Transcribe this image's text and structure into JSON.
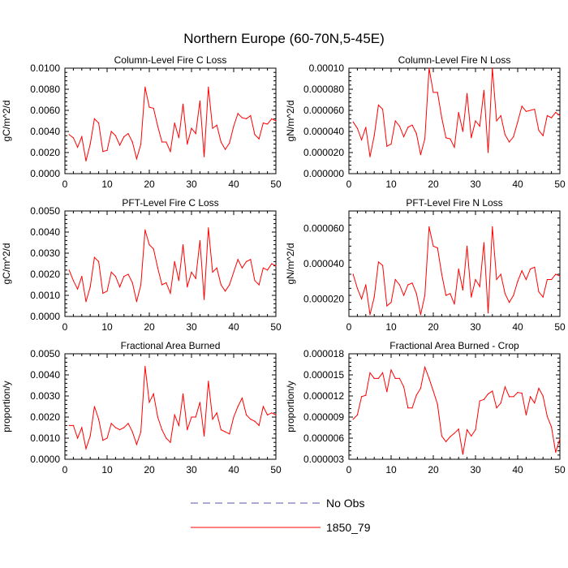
{
  "figure": {
    "title": "Northern Europe (60-70N,5-45E)",
    "legend": [
      {
        "label": "No Obs",
        "color": "#5555aa",
        "dash": true
      },
      {
        "label": "1850_79",
        "color": "#ff0000",
        "dash": false
      }
    ]
  },
  "chart_data": [
    {
      "type": "line",
      "title": "Column-Level Fire C Loss",
      "ylabel": "gC/m^2/d",
      "xlim": [
        0,
        50
      ],
      "ylim": [
        0,
        0.01
      ],
      "xticks": [
        "0",
        "10",
        "20",
        "30",
        "40",
        "50"
      ],
      "yticks": [
        "0.0000",
        "0.0020",
        "0.0040",
        "0.0060",
        "0.0080",
        "0.0100"
      ],
      "x": [
        1,
        2,
        3,
        4,
        5,
        6,
        7,
        8,
        9,
        10,
        11,
        12,
        13,
        14,
        15,
        16,
        17,
        18,
        19,
        20,
        21,
        22,
        23,
        24,
        25,
        26,
        27,
        28,
        29,
        30,
        31,
        32,
        33,
        34,
        35,
        36,
        37,
        38,
        39,
        40,
        41,
        42,
        43,
        44,
        45,
        46,
        47,
        48,
        49,
        50
      ],
      "series": [
        {
          "name": "1850_79",
          "color": "#ff0000",
          "values": [
            0.0037,
            0.0034,
            0.0025,
            0.0035,
            0.0012,
            0.0028,
            0.0052,
            0.0048,
            0.0021,
            0.0022,
            0.004,
            0.0036,
            0.0027,
            0.0035,
            0.0038,
            0.003,
            0.0014,
            0.0028,
            0.0082,
            0.0063,
            0.0062,
            0.0045,
            0.003,
            0.003,
            0.0021,
            0.0048,
            0.0034,
            0.0066,
            0.0028,
            0.0043,
            0.0038,
            0.0069,
            0.0016,
            0.0082,
            0.0043,
            0.0046,
            0.003,
            0.0023,
            0.0029,
            0.0045,
            0.0057,
            0.0053,
            0.0052,
            0.0055,
            0.0037,
            0.0033,
            0.0048,
            0.0047,
            0.0052,
            0.005
          ]
        }
      ]
    },
    {
      "type": "line",
      "title": "Column-Level Fire N Loss",
      "ylabel": "gN/m^2/d",
      "xlim": [
        0,
        50
      ],
      "ylim": [
        0,
        0.0001
      ],
      "xticks": [
        "0",
        "10",
        "20",
        "30",
        "40",
        "50"
      ],
      "yticks": [
        "0.000000",
        "0.000020",
        "0.000040",
        "0.000060",
        "0.000080",
        "0.00010"
      ],
      "x": [
        1,
        2,
        3,
        4,
        5,
        6,
        7,
        8,
        9,
        10,
        11,
        12,
        13,
        14,
        15,
        16,
        17,
        18,
        19,
        20,
        21,
        22,
        23,
        24,
        25,
        26,
        27,
        28,
        29,
        30,
        31,
        32,
        33,
        34,
        35,
        36,
        37,
        38,
        39,
        40,
        41,
        42,
        43,
        44,
        45,
        46,
        47,
        48,
        49,
        50
      ],
      "series": [
        {
          "name": "1850_79",
          "color": "#ff0000",
          "values": [
            4.9e-05,
            4.3e-05,
            3.2e-05,
            4.4e-05,
            1.6e-05,
            3.6e-05,
            6.5e-05,
            6.1e-05,
            2.6e-05,
            2.8e-05,
            5e-05,
            4.5e-05,
            3.5e-05,
            4.4e-05,
            4.6e-05,
            3.8e-05,
            1.8e-05,
            3.3e-05,
            0.0001,
            7.7e-05,
            7.7e-05,
            5.3e-05,
            3.4e-05,
            3.3e-05,
            2.5e-05,
            5.8e-05,
            4e-05,
            7.6e-05,
            3.4e-05,
            5e-05,
            4.5e-05,
            7.9e-05,
            2e-05,
            0.0001,
            5e-05,
            5.5e-05,
            3.7e-05,
            3e-05,
            3.5e-05,
            4.9e-05,
            6.4e-05,
            5.9e-05,
            6e-05,
            6.1e-05,
            4.1e-05,
            3.6e-05,
            5.5e-05,
            5.3e-05,
            5.8e-05,
            5.5e-05
          ]
        }
      ]
    },
    {
      "type": "line",
      "title": "PFT-Level Fire C Loss",
      "ylabel": "gC/m^2/d",
      "xlim": [
        0,
        50
      ],
      "ylim": [
        0,
        0.005
      ],
      "xticks": [
        "0",
        "10",
        "20",
        "30",
        "40",
        "50"
      ],
      "yticks": [
        "0.0000",
        "0.0010",
        "0.0020",
        "0.0030",
        "0.0040",
        "0.0050"
      ],
      "x": [
        1,
        2,
        3,
        4,
        5,
        6,
        7,
        8,
        9,
        10,
        11,
        12,
        13,
        14,
        15,
        16,
        17,
        18,
        19,
        20,
        21,
        22,
        23,
        24,
        25,
        26,
        27,
        28,
        29,
        30,
        31,
        32,
        33,
        34,
        35,
        36,
        37,
        38,
        39,
        40,
        41,
        42,
        43,
        44,
        45,
        46,
        47,
        48,
        49,
        50
      ],
      "series": [
        {
          "name": "1850_79",
          "color": "#ff0000",
          "values": [
            0.0022,
            0.0017,
            0.0013,
            0.0019,
            0.0007,
            0.0014,
            0.0028,
            0.0026,
            0.0011,
            0.0012,
            0.0021,
            0.0019,
            0.0014,
            0.0019,
            0.002,
            0.0016,
            0.0007,
            0.0015,
            0.0041,
            0.0034,
            0.0032,
            0.0023,
            0.0015,
            0.0016,
            0.0011,
            0.0026,
            0.0017,
            0.0034,
            0.0014,
            0.0021,
            0.0018,
            0.0036,
            0.0008,
            0.0042,
            0.0021,
            0.0023,
            0.0015,
            0.0012,
            0.0015,
            0.0021,
            0.0027,
            0.0023,
            0.0026,
            0.0027,
            0.0017,
            0.0015,
            0.0023,
            0.0022,
            0.0025,
            0.0024
          ]
        }
      ]
    },
    {
      "type": "line",
      "title": "PFT-Level Fire N Loss",
      "ylabel": "gN/m^2/d",
      "xlim": [
        0,
        50
      ],
      "ylim": [
        1e-05,
        7e-05
      ],
      "xticks": [
        "0",
        "10",
        "20",
        "30",
        "40",
        "50"
      ],
      "yticks": [
        "0.000020",
        "0.000040",
        "0.000060"
      ],
      "x": [
        1,
        2,
        3,
        4,
        5,
        6,
        7,
        8,
        9,
        10,
        11,
        12,
        13,
        14,
        15,
        16,
        17,
        18,
        19,
        20,
        21,
        22,
        23,
        24,
        25,
        26,
        27,
        28,
        29,
        30,
        31,
        32,
        33,
        34,
        35,
        36,
        37,
        38,
        39,
        40,
        41,
        42,
        43,
        44,
        45,
        46,
        47,
        48,
        49,
        50
      ],
      "series": [
        {
          "name": "1850_79",
          "color": "#ff0000",
          "values": [
            3.4e-05,
            2.6e-05,
            2e-05,
            2.8e-05,
            1.1e-05,
            2.1e-05,
            4.1e-05,
            3.9e-05,
            1.6e-05,
            1.8e-05,
            3.1e-05,
            2.8e-05,
            2.2e-05,
            2.8e-05,
            2.9e-05,
            2.3e-05,
            1.1e-05,
            2.2e-05,
            6.1e-05,
            5e-05,
            4.9e-05,
            3.4e-05,
            2.2e-05,
            2.3e-05,
            1.7e-05,
            3.7e-05,
            2.5e-05,
            5e-05,
            2.1e-05,
            3.1e-05,
            2.7e-05,
            5.2e-05,
            1.2e-05,
            6.1e-05,
            3.1e-05,
            3.4e-05,
            2.3e-05,
            1.8e-05,
            2.2e-05,
            3e-05,
            3.6e-05,
            3.1e-05,
            3.7e-05,
            3.8e-05,
            2.4e-05,
            2.1e-05,
            3.1e-05,
            3.1e-05,
            3.4e-05,
            3.3e-05
          ]
        }
      ]
    },
    {
      "type": "line",
      "title": "Fractional Area Burned",
      "ylabel": "proportion/y",
      "xlim": [
        0,
        50
      ],
      "ylim": [
        0,
        0.005
      ],
      "xticks": [
        "0",
        "10",
        "20",
        "30",
        "40",
        "50"
      ],
      "yticks": [
        "0.0000",
        "0.0010",
        "0.0020",
        "0.0030",
        "0.0040",
        "0.0050"
      ],
      "x": [
        1,
        2,
        3,
        4,
        5,
        6,
        7,
        8,
        9,
        10,
        11,
        12,
        13,
        14,
        15,
        16,
        17,
        18,
        19,
        20,
        21,
        22,
        23,
        24,
        25,
        26,
        27,
        28,
        29,
        30,
        31,
        32,
        33,
        34,
        35,
        36,
        37,
        38,
        39,
        40,
        41,
        42,
        43,
        44,
        45,
        46,
        47,
        48,
        49,
        50
      ],
      "series": [
        {
          "name": "1850_79",
          "color": "#ff0000",
          "values": [
            0.0016,
            0.0016,
            0.001,
            0.0015,
            0.0005,
            0.0011,
            0.0025,
            0.0019,
            0.0009,
            0.001,
            0.0017,
            0.0015,
            0.0014,
            0.0015,
            0.0017,
            0.0013,
            0.0007,
            0.0013,
            0.0044,
            0.0027,
            0.0031,
            0.002,
            0.0014,
            0.001,
            0.0008,
            0.0021,
            0.0016,
            0.0031,
            0.0014,
            0.002,
            0.002,
            0.0027,
            0.0011,
            0.0037,
            0.0019,
            0.0022,
            0.0014,
            0.0013,
            0.0012,
            0.002,
            0.0025,
            0.0029,
            0.0021,
            0.0019,
            0.0018,
            0.0016,
            0.0025,
            0.0021,
            0.0022,
            0.0021
          ]
        }
      ]
    },
    {
      "type": "line",
      "title": "Fractional Area Burned - Crop",
      "ylabel": "proportion/y",
      "xlim": [
        0,
        50
      ],
      "ylim": [
        3e-06,
        1.8e-05
      ],
      "xticks": [
        "0",
        "10",
        "20",
        "30",
        "40",
        "50"
      ],
      "yticks": [
        "0.000003",
        "0.000006",
        "0.000009",
        "0.000012",
        "0.000015",
        "0.000018"
      ],
      "x": [
        1,
        2,
        3,
        4,
        5,
        6,
        7,
        8,
        9,
        10,
        11,
        12,
        13,
        14,
        15,
        16,
        17,
        18,
        19,
        20,
        21,
        22,
        23,
        24,
        25,
        26,
        27,
        28,
        29,
        30,
        31,
        32,
        33,
        34,
        35,
        36,
        37,
        38,
        39,
        40,
        41,
        42,
        43,
        44,
        45,
        46,
        47,
        48,
        49,
        50
      ],
      "series": [
        {
          "name": "1850_79",
          "color": "#ff0000",
          "values": [
            8.7e-06,
            9.3e-06,
            1.19e-05,
            1.21e-05,
            1.53e-05,
            1.45e-05,
            1.45e-05,
            1.53e-05,
            1.26e-05,
            1.57e-05,
            1.45e-05,
            1.45e-05,
            1.33e-05,
            1.03e-05,
            1.03e-05,
            1.21e-05,
            1.31e-05,
            1.61e-05,
            1.45e-05,
            1.27e-05,
            1.08e-05,
            6.3e-06,
            5.5e-06,
            6.2e-06,
            6.7e-06,
            7.3e-06,
            3.7e-06,
            7.2e-06,
            6.3e-06,
            7.2e-06,
            1.13e-05,
            1.15e-05,
            1.23e-05,
            1.27e-05,
            1.03e-05,
            1.1e-05,
            1.33e-05,
            1.19e-05,
            1.19e-05,
            1.25e-05,
            1.24e-05,
            9.3e-06,
            1.19e-05,
            1.1e-05,
            1.31e-05,
            1.2e-05,
            9.1e-06,
            7.6e-06,
            4e-06,
            5.9e-06
          ]
        }
      ]
    }
  ]
}
